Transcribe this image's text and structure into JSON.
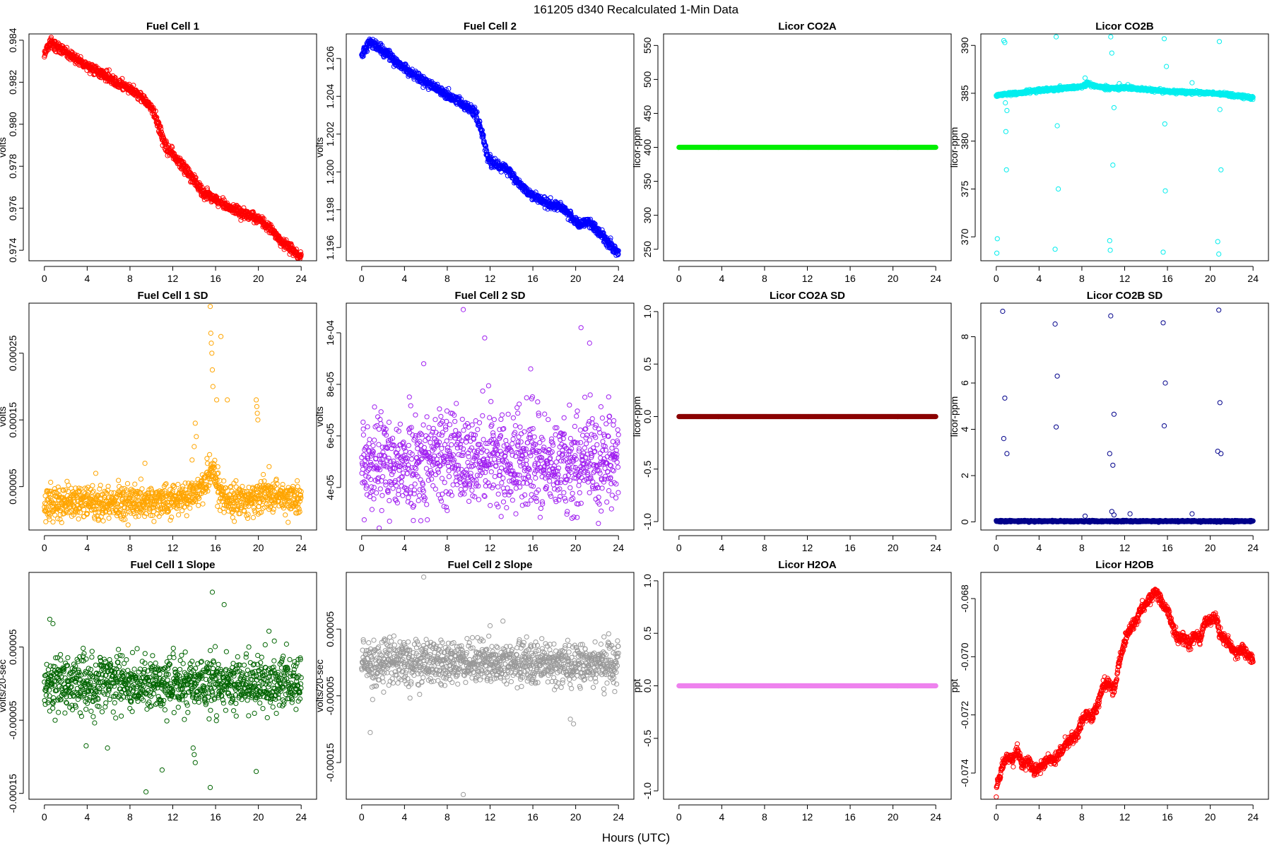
{
  "figure": {
    "title": "161205   d340   Recalculated 1-Min Data",
    "xlabel": "Hours (UTC)"
  },
  "chart_data": [
    {
      "type": "scatter",
      "title": "Fuel Cell 1",
      "ylabel": "volts",
      "color": "#ff0000",
      "xlim": [
        0,
        24
      ],
      "ylim": [
        0.9735,
        0.9843
      ],
      "xticks": [
        "0",
        "4",
        "8",
        "12",
        "16",
        "20",
        "24"
      ],
      "yticks": [
        0.974,
        0.976,
        0.978,
        0.98,
        0.982,
        0.984
      ],
      "yticklabels": [
        "0.974",
        "0.976",
        "0.978",
        "0.980",
        "0.982",
        "0.984"
      ],
      "pattern": "walk",
      "noise": 0.00012,
      "x": [
        0,
        0.6,
        1.2,
        2,
        3,
        4,
        5,
        6,
        7,
        8,
        9,
        10,
        10.5,
        11,
        11.5,
        12,
        13,
        14,
        15,
        16,
        17,
        18,
        19,
        20,
        21,
        22,
        23,
        24
      ],
      "y": [
        0.9834,
        0.9839,
        0.9837,
        0.9834,
        0.9831,
        0.9828,
        0.9825,
        0.9822,
        0.9819,
        0.9817,
        0.9813,
        0.9808,
        0.9802,
        0.9794,
        0.9788,
        0.9786,
        0.978,
        0.9773,
        0.9767,
        0.9764,
        0.9761,
        0.9759,
        0.9757,
        0.9755,
        0.9751,
        0.9745,
        0.9741,
        0.9737
      ]
    },
    {
      "type": "scatter",
      "title": "Fuel Cell 2",
      "ylabel": "volts",
      "color": "#0000ff",
      "xlim": [
        0,
        24
      ],
      "ylim": [
        1.1953,
        1.2073
      ],
      "xticks": [
        "0",
        "4",
        "8",
        "12",
        "16",
        "20",
        "24"
      ],
      "yticks": [
        1.196,
        1.198,
        1.2,
        1.202,
        1.204,
        1.206
      ],
      "yticklabels": [
        "1.196",
        "1.198",
        "1.200",
        "1.202",
        "1.204",
        "1.206"
      ],
      "pattern": "walk",
      "noise": 0.00012,
      "x": [
        0,
        0.7,
        1.5,
        2.5,
        3.5,
        4.5,
        5.5,
        6.5,
        7.5,
        8.5,
        9.5,
        10.5,
        11.2,
        11.8,
        12.5,
        13.5,
        14.5,
        15.5,
        16.5,
        17.5,
        18.5,
        19.5,
        20.3,
        21,
        22,
        23,
        24
      ],
      "y": [
        1.2062,
        1.2069,
        1.2066,
        1.2062,
        1.2057,
        1.2053,
        1.2049,
        1.2046,
        1.2042,
        1.2039,
        1.2036,
        1.2032,
        1.2022,
        1.2007,
        1.2004,
        1.2002,
        1.1995,
        1.1989,
        1.1986,
        1.1983,
        1.1982,
        1.1977,
        1.1972,
        1.1974,
        1.1969,
        1.1963,
        1.1957
      ]
    },
    {
      "type": "scatter",
      "title": "Licor CO2A",
      "ylabel": "licor-ppm",
      "color": "#00ee00",
      "xlim": [
        0,
        24
      ],
      "ylim": [
        233,
        567
      ],
      "xticks": [
        "0",
        "4",
        "8",
        "12",
        "16",
        "20",
        "24"
      ],
      "yticks": [
        250,
        300,
        350,
        400,
        450,
        500,
        550
      ],
      "yticklabels": [
        "250",
        "300",
        "350",
        "400",
        "450",
        "500",
        "550"
      ],
      "pattern": "flat",
      "noise": 0,
      "x": [
        0,
        24
      ],
      "y": [
        400,
        400
      ]
    },
    {
      "type": "scatter",
      "title": "Licor CO2B",
      "ylabel": "licor-ppm",
      "color": "#00eeee",
      "xlim": [
        0,
        24
      ],
      "ylim": [
        367.5,
        391.2
      ],
      "xticks": [
        "0",
        "4",
        "8",
        "12",
        "16",
        "20",
        "24"
      ],
      "yticks": [
        370,
        375,
        380,
        385,
        390
      ],
      "yticklabels": [
        "370",
        "375",
        "380",
        "385",
        "390"
      ],
      "pattern": "walk",
      "noise": 0.08,
      "x": [
        0,
        2,
        4,
        6,
        8,
        8.5,
        9,
        10,
        11,
        12,
        14,
        16,
        18,
        20,
        22,
        24
      ],
      "y": [
        384.8,
        385.0,
        385.3,
        385.5,
        385.7,
        386.0,
        385.8,
        385.6,
        385.5,
        385.6,
        385.4,
        385.2,
        385.1,
        385.0,
        384.8,
        384.5
      ],
      "outliers": {
        "x": [
          0.05,
          0.1,
          0.7,
          0.8,
          0.85,
          0.9,
          0.95,
          1.0,
          5.5,
          5.6,
          5.7,
          5.8,
          10.6,
          10.65,
          10.7,
          10.8,
          10.9,
          11.0,
          15.6,
          15.7,
          15.75,
          15.8,
          15.9,
          20.7,
          20.8,
          20.85,
          20.9,
          21.0,
          8.3,
          11.5,
          12.3,
          18.3
        ],
        "y": [
          368.3,
          369.8,
          390.5,
          390.3,
          384.0,
          381.0,
          377.0,
          383.2,
          368.7,
          390.9,
          381.6,
          375.0,
          369.6,
          368.6,
          390.9,
          389.2,
          377.5,
          383.5,
          368.4,
          390.7,
          381.8,
          374.8,
          387.8,
          369.5,
          368.2,
          390.4,
          383.3,
          377.0,
          386.6,
          386.0,
          385.9,
          386.1
        ]
      }
    },
    {
      "type": "scatter",
      "title": "Fuel Cell 1 SD",
      "ylabel": "volts",
      "color": "#ffa500",
      "xlim": [
        0,
        24
      ],
      "ylim": [
        -1.5e-05,
        0.000325
      ],
      "xticks": [
        "0",
        "4",
        "8",
        "12",
        "16",
        "20",
        "24"
      ],
      "yticks": [
        5e-05,
        0.00015,
        0.00025
      ],
      "yticklabels": [
        "0.00005",
        "0.00015",
        "0.00025"
      ],
      "pattern": "noise",
      "noise": 1.2e-05,
      "x": [
        0,
        4,
        8,
        12,
        13.5,
        14.5,
        15.0,
        15.5,
        16.0,
        16.5,
        17.5,
        19.5,
        20.5,
        22,
        24
      ],
      "y": [
        2.5e-05,
        2.8e-05,
        2.5e-05,
        3e-05,
        3.5e-05,
        4.5e-05,
        6e-05,
        7.5e-05,
        6.5e-05,
        3.5e-05,
        2.8e-05,
        3e-05,
        4e-05,
        3.5e-05,
        3e-05
      ],
      "outliers": {
        "x": [
          13.8,
          14.0,
          14.1,
          14.2,
          15.5,
          15.55,
          15.6,
          15.65,
          15.7,
          15.75,
          16.1,
          16.5,
          17.1,
          19.8,
          19.85,
          19.9,
          19.95,
          9.4,
          4.8,
          21.0
        ],
        "y": [
          9e-05,
          0.00011,
          0.000145,
          0.000125,
          0.00032,
          0.00028,
          0.000265,
          0.00025,
          0.000225,
          0.0002,
          0.00018,
          0.000275,
          0.00018,
          0.00018,
          0.00017,
          0.00016,
          0.00015,
          8.5e-05,
          7e-05,
          8e-05
        ]
      }
    },
    {
      "type": "scatter",
      "title": "Fuel Cell 2 SD",
      "ylabel": "volts",
      "color": "#a020f0",
      "xlim": [
        0,
        24
      ],
      "ylim": [
        2.35e-05,
        0.0001115
      ],
      "xticks": [
        "0",
        "4",
        "8",
        "12",
        "16",
        "20",
        "24"
      ],
      "yticks": [
        4e-05,
        6e-05,
        8e-05,
        0.0001
      ],
      "yticklabels": [
        "4e-05",
        "6e-05",
        "8e-05",
        "1e-04"
      ],
      "pattern": "noise",
      "noise": 9e-06,
      "x": [
        0,
        6,
        12,
        18,
        24
      ],
      "y": [
        4.9e-05,
        4.9e-05,
        5e-05,
        5e-05,
        5.2e-05
      ],
      "outliers": {
        "x": [
          9.5,
          11.5,
          20.5,
          5.8,
          21.3,
          15.8
        ],
        "y": [
          0.000109,
          9.8e-05,
          0.000102,
          8.8e-05,
          9.6e-05,
          8.6e-05
        ]
      }
    },
    {
      "type": "scatter",
      "title": "Licor CO2A SD",
      "ylabel": "licor-ppm",
      "color": "#8b0000",
      "xlim": [
        0,
        24
      ],
      "ylim": [
        -1.08,
        1.08
      ],
      "xticks": [
        "0",
        "4",
        "8",
        "12",
        "16",
        "20",
        "24"
      ],
      "yticks": [
        -1.0,
        -0.5,
        0.0,
        0.5,
        1.0
      ],
      "yticklabels": [
        "-1.0",
        "-0.5",
        "0.0",
        "0.5",
        "1.0"
      ],
      "pattern": "flat",
      "noise": 0,
      "x": [
        0,
        24
      ],
      "y": [
        0,
        0
      ]
    },
    {
      "type": "scatter",
      "title": "Licor CO2B SD",
      "ylabel": "licor-ppm",
      "color": "#00008b",
      "xlim": [
        0,
        24
      ],
      "ylim": [
        -0.35,
        9.45
      ],
      "xticks": [
        "0",
        "4",
        "8",
        "12",
        "16",
        "20",
        "24"
      ],
      "yticks": [
        0,
        2,
        4,
        6,
        8
      ],
      "yticklabels": [
        "0",
        "2",
        "4",
        "6",
        "8"
      ],
      "pattern": "noise",
      "noise": 0.015,
      "x": [
        0,
        24
      ],
      "y": [
        0.03,
        0.03
      ],
      "outliers": {
        "x": [
          0.6,
          0.7,
          0.8,
          1.0,
          5.5,
          5.6,
          5.7,
          10.7,
          10.8,
          10.9,
          11.0,
          10.6,
          15.6,
          15.7,
          15.8,
          20.8,
          20.9,
          21.0,
          20.7,
          8.3,
          12.5,
          11.0,
          18.3
        ],
        "y": [
          9.1,
          3.6,
          5.35,
          2.95,
          8.55,
          4.1,
          6.3,
          8.9,
          0.45,
          2.45,
          4.65,
          2.95,
          8.6,
          4.15,
          6.0,
          9.15,
          5.15,
          2.95,
          3.05,
          0.25,
          0.35,
          0.3,
          0.35
        ]
      }
    },
    {
      "type": "scatter",
      "title": "Fuel Cell 1 Slope",
      "ylabel": "volts/20-sec",
      "color": "#006400",
      "xlim": [
        0,
        24
      ],
      "ylim": [
        -0.000158,
        0.000152
      ],
      "xticks": [
        "0",
        "4",
        "8",
        "12",
        "16",
        "20",
        "24"
      ],
      "yticks": [
        -0.00015,
        -5e-05,
        5e-05
      ],
      "yticklabels": [
        "-0.00015",
        "-0.00005",
        "0.00005"
      ],
      "pattern": "noise",
      "noise": 1.9e-05,
      "x": [
        0,
        24
      ],
      "y": [
        0,
        0
      ],
      "outliers": {
        "x": [
          9.5,
          11.0,
          15.5,
          14.0,
          19.8,
          0.5,
          0.8,
          15.7,
          16.8,
          3.9,
          5.9,
          13.9,
          14.1
        ],
        "y": [
          -0.000148,
          -0.000118,
          -0.000142,
          -9.7e-05,
          -0.00012,
          8.8e-05,
          8.2e-05,
          0.000125,
          0.000108,
          -8.5e-05,
          -8.8e-05,
          -8.8e-05,
          -0.000108
        ]
      }
    },
    {
      "type": "scatter",
      "title": "Fuel Cell 2 Slope",
      "ylabel": "volts/20-sec",
      "color": "#999999",
      "xlim": [
        0,
        24
      ],
      "ylim": [
        -0.000205,
        0.000135
      ],
      "xticks": [
        "0",
        "4",
        "8",
        "12",
        "16",
        "20",
        "24"
      ],
      "yticks": [
        -0.00015,
        -5e-05,
        5e-05
      ],
      "yticklabels": [
        "-0.00015",
        "-0.00005",
        "0.00005"
      ],
      "pattern": "noise",
      "noise": 1.6e-05,
      "x": [
        0,
        24
      ],
      "y": [
        0,
        0
      ],
      "outliers": {
        "x": [
          5.8,
          9.5,
          0.8,
          13.2,
          19.5,
          19.8,
          12.0
        ],
        "y": [
          0.000128,
          -0.000198,
          -0.000105,
          6.2e-05,
          -8.5e-05,
          -9.2e-05,
          5.5e-05
        ]
      }
    },
    {
      "type": "scatter",
      "title": "Licor H2OA",
      "ylabel": "ppt",
      "color": "#ee82ee",
      "xlim": [
        0,
        24
      ],
      "ylim": [
        -1.08,
        1.08
      ],
      "xticks": [
        "0",
        "4",
        "8",
        "12",
        "16",
        "20",
        "24"
      ],
      "yticks": [
        -1.0,
        -0.5,
        0.0,
        0.5,
        1.0
      ],
      "yticklabels": [
        "-1.0",
        "-0.5",
        "0.0",
        "0.5",
        "1.0"
      ],
      "pattern": "flat",
      "noise": 0,
      "x": [
        0,
        24
      ],
      "y": [
        0,
        0
      ]
    },
    {
      "type": "scatter",
      "title": "Licor H2OB",
      "ylabel": "ppt",
      "color": "#ff0000",
      "xlim": [
        0,
        24
      ],
      "ylim": [
        -0.0749,
        -0.0671
      ],
      "xticks": [
        "0",
        "4",
        "8",
        "12",
        "16",
        "20",
        "24"
      ],
      "yticks": [
        -0.074,
        -0.072,
        -0.07,
        -0.068
      ],
      "yticklabels": [
        "-0.074",
        "-0.072",
        "-0.070",
        "-0.068"
      ],
      "pattern": "walk",
      "noise": 9e-05,
      "x": [
        0,
        0.5,
        1.0,
        1.5,
        2.0,
        2.5,
        3.0,
        3.5,
        4.0,
        4.5,
        5.0,
        5.5,
        6.0,
        6.5,
        7.0,
        7.5,
        8.0,
        8.5,
        9.0,
        9.5,
        10.0,
        10.5,
        11.0,
        11.5,
        12.0,
        12.5,
        13.0,
        13.5,
        14.0,
        14.5,
        15.0,
        15.5,
        16.0,
        16.5,
        17.0,
        17.5,
        18.0,
        18.5,
        19.0,
        19.5,
        20.0,
        20.5,
        21.0,
        21.5,
        22.0,
        22.5,
        23.0,
        23.5,
        24.0
      ],
      "y": [
        -0.0745,
        -0.0738,
        -0.0734,
        -0.0736,
        -0.0732,
        -0.0738,
        -0.0736,
        -0.0739,
        -0.0738,
        -0.0737,
        -0.0735,
        -0.0736,
        -0.0733,
        -0.073,
        -0.0728,
        -0.0727,
        -0.0722,
        -0.072,
        -0.0721,
        -0.0716,
        -0.071,
        -0.0709,
        -0.0712,
        -0.0702,
        -0.0695,
        -0.069,
        -0.0688,
        -0.0684,
        -0.0682,
        -0.0679,
        -0.0678,
        -0.0682,
        -0.0684,
        -0.069,
        -0.0694,
        -0.0693,
        -0.0696,
        -0.0693,
        -0.0694,
        -0.0688,
        -0.0688,
        -0.0686,
        -0.0693,
        -0.0694,
        -0.0697,
        -0.0699,
        -0.0697,
        -0.07,
        -0.0701
      ]
    }
  ]
}
